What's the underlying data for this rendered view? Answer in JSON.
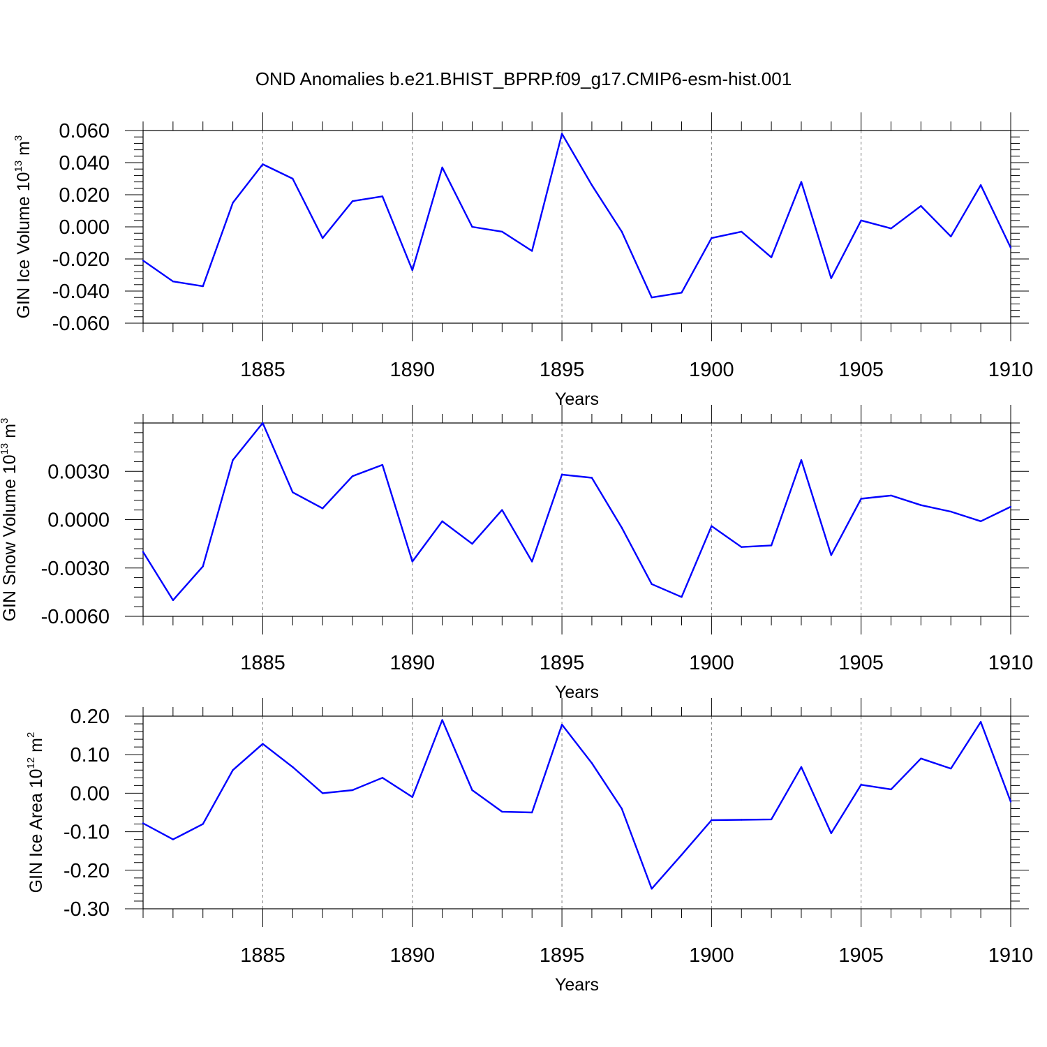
{
  "title": "OND Anomalies b.e21.BHIST_BPRP.f09_g17.CMIP6-esm-hist.001",
  "line_color": "#0000ff",
  "chart_data": [
    {
      "type": "line",
      "xlabel": "Years",
      "ylabel": {
        "prefix": "GIN Ice Volume 10",
        "exp": "13",
        "unit": " m",
        "unit_exp": "3"
      },
      "x": [
        1881,
        1882,
        1883,
        1884,
        1885,
        1886,
        1887,
        1888,
        1889,
        1890,
        1891,
        1892,
        1893,
        1894,
        1895,
        1896,
        1897,
        1898,
        1899,
        1900,
        1901,
        1902,
        1903,
        1904,
        1905,
        1906,
        1907,
        1908,
        1909,
        1910
      ],
      "values": [
        -0.021,
        -0.034,
        -0.037,
        0.015,
        0.039,
        0.03,
        -0.007,
        0.016,
        0.019,
        -0.027,
        0.037,
        0.0,
        -0.003,
        -0.015,
        0.058,
        0.026,
        -0.003,
        -0.044,
        -0.041,
        -0.007,
        -0.003,
        -0.019,
        0.028,
        -0.032,
        0.004,
        -0.001,
        0.013,
        -0.006,
        0.026,
        -0.013
      ],
      "xlim": [
        1881,
        1910
      ],
      "ylim": [
        -0.06,
        0.06
      ],
      "yticks": [
        -0.06,
        -0.04,
        -0.02,
        0.0,
        0.02,
        0.04,
        0.06
      ],
      "ytick_labels": [
        "-0.060",
        "-0.040",
        "-0.020",
        "0.000",
        "0.020",
        "0.040",
        "0.060"
      ],
      "xticks": [
        1885,
        1890,
        1895,
        1900,
        1905,
        1910
      ],
      "xtick_labels": [
        "1885",
        "1890",
        "1895",
        "1900",
        "1905",
        "1910"
      ],
      "grid": "vertical dashed at major x ticks"
    },
    {
      "type": "line",
      "xlabel": "Years",
      "ylabel": {
        "prefix": "GIN Snow Volume 10",
        "exp": "13",
        "unit": " m",
        "unit_exp": "3"
      },
      "x": [
        1881,
        1882,
        1883,
        1884,
        1885,
        1886,
        1887,
        1888,
        1889,
        1890,
        1891,
        1892,
        1893,
        1894,
        1895,
        1896,
        1897,
        1898,
        1899,
        1900,
        1901,
        1902,
        1903,
        1904,
        1905,
        1906,
        1907,
        1908,
        1909,
        1910
      ],
      "values": [
        -0.002,
        -0.005,
        -0.0029,
        0.0037,
        0.006,
        0.0017,
        0.0007,
        0.0027,
        0.0034,
        -0.0026,
        -0.0001,
        -0.0015,
        0.0006,
        -0.0026,
        0.0028,
        0.0026,
        -0.0005,
        -0.004,
        -0.0048,
        -0.0004,
        -0.0017,
        -0.0016,
        0.0037,
        -0.0022,
        0.0013,
        0.0015,
        0.0009,
        0.0005,
        -0.0001,
        0.0008
      ],
      "xlim": [
        1881,
        1910
      ],
      "ylim": [
        -0.006,
        0.006
      ],
      "yticks": [
        -0.006,
        -0.003,
        0.0,
        0.003
      ],
      "ytick_labels": [
        "-0.0060",
        "-0.0030",
        "0.0000",
        "0.0030"
      ],
      "xticks": [
        1885,
        1890,
        1895,
        1900,
        1905,
        1910
      ],
      "xtick_labels": [
        "1885",
        "1890",
        "1895",
        "1900",
        "1905",
        "1910"
      ],
      "grid": "vertical dashed at major x ticks"
    },
    {
      "type": "line",
      "xlabel": "Years",
      "ylabel": {
        "prefix": "GIN Ice Area 10",
        "exp": "12",
        "unit": " m",
        "unit_exp": "2"
      },
      "x": [
        1881,
        1882,
        1883,
        1884,
        1885,
        1886,
        1887,
        1888,
        1889,
        1890,
        1891,
        1892,
        1893,
        1894,
        1895,
        1896,
        1897,
        1898,
        1899,
        1900,
        1901,
        1902,
        1903,
        1904,
        1905,
        1906,
        1907,
        1908,
        1909,
        1910
      ],
      "values": [
        -0.078,
        -0.12,
        -0.08,
        0.06,
        0.128,
        0.068,
        0.0,
        0.008,
        0.04,
        -0.01,
        0.19,
        0.008,
        -0.048,
        -0.05,
        0.178,
        0.078,
        -0.04,
        -0.248,
        -0.16,
        -0.07,
        -0.069,
        -0.068,
        0.068,
        -0.104,
        0.022,
        0.01,
        0.09,
        0.064,
        0.185,
        -0.022
      ],
      "xlim": [
        1881,
        1910
      ],
      "ylim": [
        -0.3,
        0.2
      ],
      "yticks": [
        -0.3,
        -0.2,
        -0.1,
        0.0,
        0.1,
        0.2
      ],
      "ytick_labels": [
        "-0.30",
        "-0.20",
        "-0.10",
        "0.00",
        "0.10",
        "0.20"
      ],
      "xticks": [
        1885,
        1890,
        1895,
        1900,
        1905,
        1910
      ],
      "xtick_labels": [
        "1885",
        "1890",
        "1895",
        "1900",
        "1905",
        "1910"
      ],
      "grid": "vertical dashed at major x ticks"
    }
  ]
}
